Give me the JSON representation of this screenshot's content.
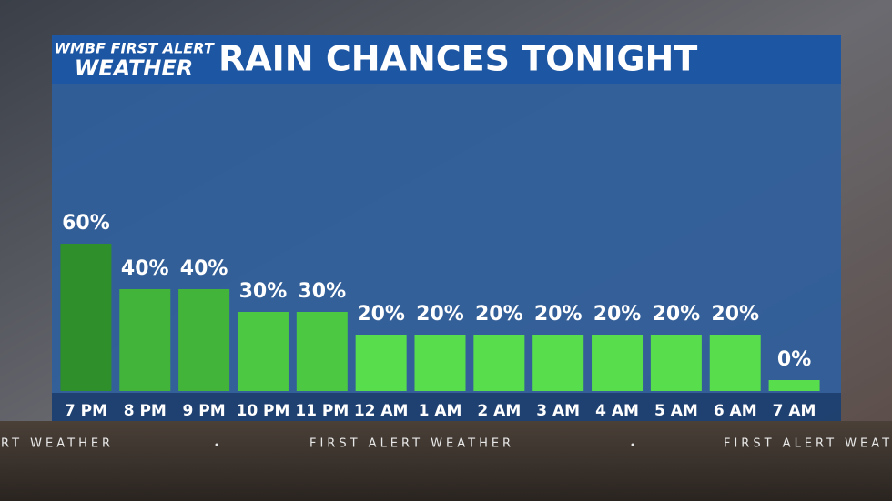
{
  "chart_data": {
    "type": "bar",
    "brand_top": "WMBF FIRST ALERT",
    "brand_bottom": "WEATHER",
    "title": "RAIN CHANCES TONIGHT",
    "categories": [
      "7 PM",
      "8 PM",
      "9 PM",
      "10 PM",
      "11 PM",
      "12 AM",
      "1 AM",
      "2 AM",
      "3 AM",
      "4 AM",
      "5 AM",
      "6 AM",
      "7 AM"
    ],
    "values": [
      60,
      40,
      40,
      30,
      30,
      20,
      20,
      20,
      20,
      20,
      20,
      20,
      0
    ],
    "value_labels": [
      "60%",
      "40%",
      "40%",
      "30%",
      "30%",
      "20%",
      "20%",
      "20%",
      "20%",
      "20%",
      "20%",
      "20%",
      "0%"
    ],
    "colors": [
      "#2f8f2a",
      "#43b43a",
      "#43b43a",
      "#4cc843",
      "#4cc843",
      "#58dd4c",
      "#58dd4c",
      "#58dd4c",
      "#58dd4c",
      "#58dd4c",
      "#58dd4c",
      "#58dd4c",
      "#58dd4c"
    ],
    "ticker": "FIRST ALERT WEATHER"
  }
}
